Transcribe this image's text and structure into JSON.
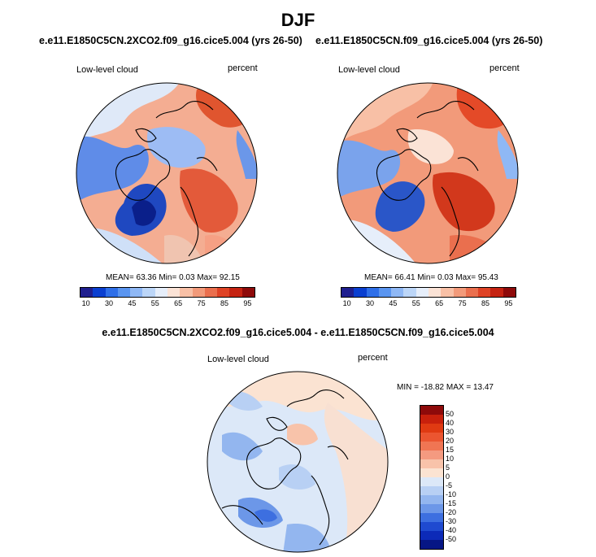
{
  "title": "DJF",
  "panel_a": {
    "title": "e.e11.E1850C5CN.2XCO2.f09_g16.cice5.004 (yrs 26-50)",
    "variable": "Low-level cloud",
    "units": "percent",
    "stats": {
      "mean_label": "MEAN=",
      "mean": "63.36",
      "min_label": "Min=",
      "min": "0.03",
      "max_label": "Max=",
      "max": "92.15"
    }
  },
  "panel_b": {
    "title": "e.e11.E1850C5CN.f09_g16.cice5.004 (yrs 26-50)",
    "variable": "Low-level cloud",
    "units": "percent",
    "stats": {
      "mean_label": "MEAN=",
      "mean": "66.41",
      "min_label": "Min=",
      "min": "0.03",
      "max_label": "Max=",
      "max": "95.43"
    }
  },
  "panel_diff": {
    "title": "e.e11.E1850C5CN.2XCO2.f09_g16.cice5.004 - e.e11.E1850C5CN.f09_g16.cice5.004",
    "variable": "Low-level cloud",
    "units": "percent",
    "stats": {
      "min_label": "MIN =",
      "min": "-18.82",
      "max_label": "MAX =",
      "max": "13.47"
    }
  },
  "colorbar_abs": {
    "ticks": [
      "10",
      "30",
      "45",
      "55",
      "65",
      "75",
      "85",
      "95"
    ],
    "colors": [
      "#1f1f8f",
      "#0a3fd0",
      "#2f6fe8",
      "#5a95f0",
      "#8fb8f5",
      "#bcd6f8",
      "#e6eefa",
      "#fbe3d6",
      "#f8c0a6",
      "#f29a7a",
      "#ea6f4e",
      "#df4326",
      "#c52312",
      "#8e0a0a"
    ]
  },
  "colorbar_diff": {
    "ticks": [
      "50",
      "40",
      "30",
      "20",
      "15",
      "10",
      "5",
      "0",
      "-5",
      "-10",
      "-15",
      "-20",
      "-30",
      "-40",
      "-50"
    ],
    "colors": [
      "#8e0a0a",
      "#c8200c",
      "#e03a12",
      "#eb5530",
      "#f07553",
      "#f49a80",
      "#f8c3aa",
      "#fbe3d2",
      "#dce8f8",
      "#b8d0f4",
      "#93b6ef",
      "#6c97e8",
      "#3d6fe0",
      "#1f4ad0",
      "#0c2ab8",
      "#061685"
    ]
  }
}
